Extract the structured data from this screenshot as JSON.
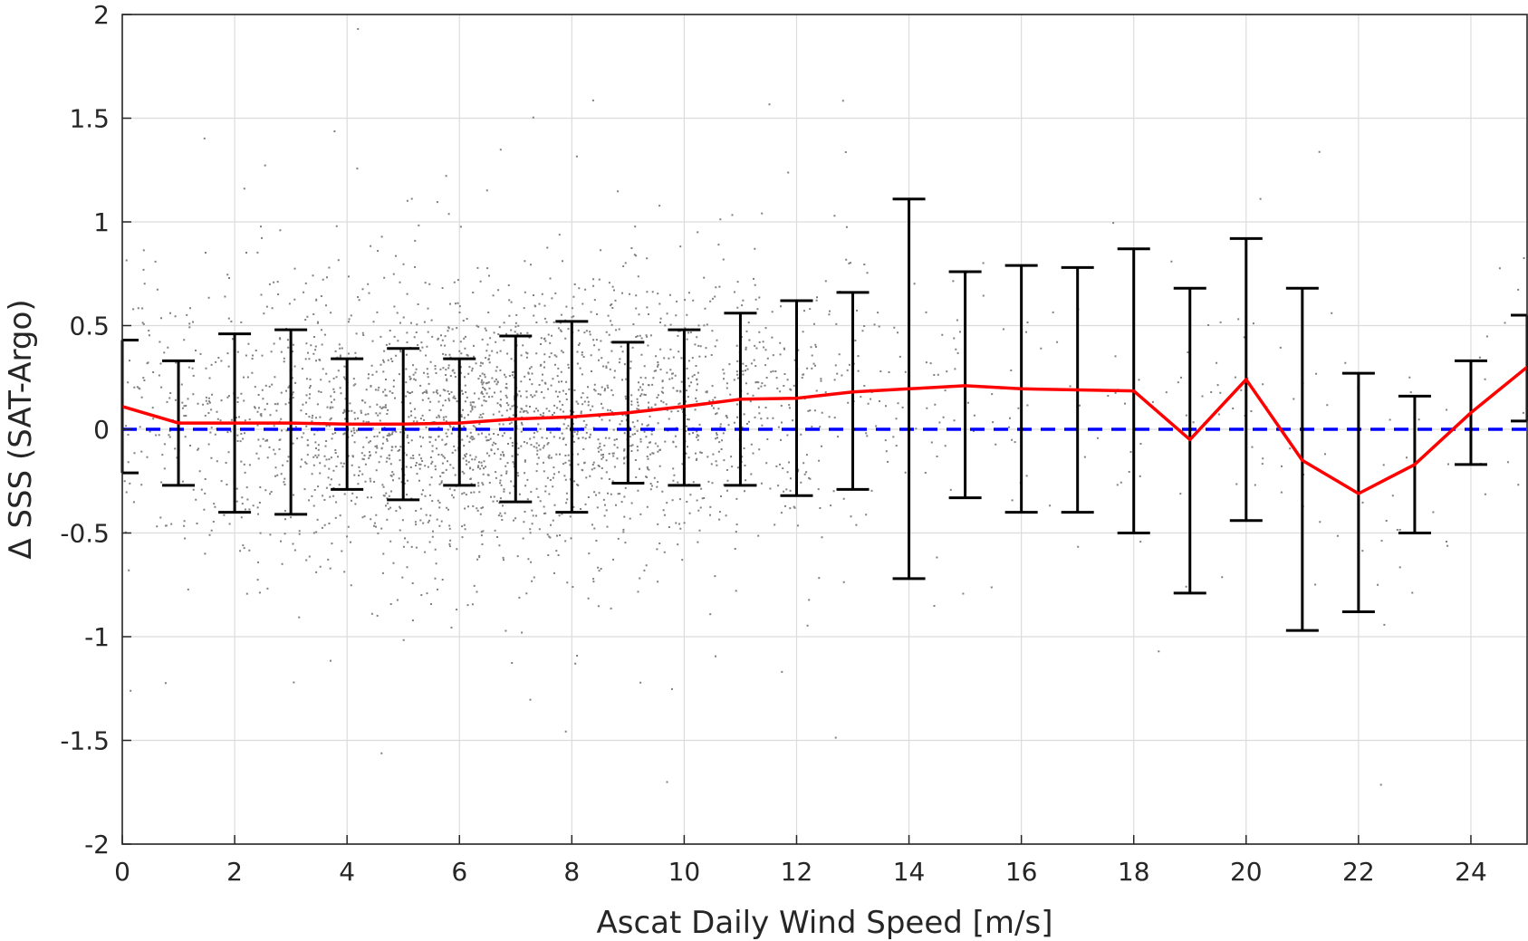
{
  "chart_data": {
    "type": "scatter",
    "title": "",
    "xlabel": "Ascat Daily Wind Speed [m/s]",
    "ylabel": "Δ SSS (SAT-Argo)",
    "xlim": [
      0,
      25
    ],
    "ylim": [
      -2,
      2
    ],
    "xticks": [
      0,
      2,
      4,
      6,
      8,
      10,
      12,
      14,
      16,
      18,
      20,
      22,
      24
    ],
    "yticks": [
      -2,
      -1.5,
      -1,
      -0.5,
      0,
      0.5,
      1,
      1.5,
      2
    ],
    "xtick_labels": [
      "0",
      "2",
      "4",
      "6",
      "8",
      "10",
      "12",
      "14",
      "16",
      "18",
      "20",
      "22",
      "24"
    ],
    "ytick_labels": [
      "-2",
      "-1.5",
      "-1",
      "-0.5",
      "0",
      "0.5",
      "1",
      "1.5",
      "2"
    ],
    "grid": true,
    "colors": {
      "scatter": "#808080",
      "mean_line": "#ff0000",
      "zero_line": "#0000ff",
      "error_bars": "#000000"
    },
    "series": [
      {
        "kind": "errorbar_mean",
        "x": [
          0,
          1,
          2,
          3,
          4,
          5,
          6,
          7,
          8,
          9,
          10,
          11,
          12,
          13,
          14,
          15,
          16,
          17,
          18,
          19,
          20,
          21,
          22,
          23,
          24,
          25
        ],
        "mean": [
          0.11,
          0.03,
          0.03,
          0.03,
          0.025,
          0.025,
          0.03,
          0.05,
          0.06,
          0.08,
          0.11,
          0.145,
          0.15,
          0.18,
          0.195,
          0.21,
          0.195,
          0.19,
          0.185,
          -0.05,
          0.24,
          -0.15,
          -0.31,
          -0.17,
          0.08,
          0.3
        ],
        "upper": [
          0.43,
          0.33,
          0.46,
          0.48,
          0.34,
          0.39,
          0.34,
          0.45,
          0.52,
          0.42,
          0.48,
          0.56,
          0.62,
          0.66,
          1.11,
          0.76,
          0.79,
          0.78,
          0.87,
          0.68,
          0.92,
          0.68,
          0.27,
          0.16,
          0.33,
          0.55
        ],
        "lower": [
          -0.21,
          -0.27,
          -0.4,
          -0.41,
          -0.29,
          -0.34,
          -0.27,
          -0.35,
          -0.4,
          -0.26,
          -0.27,
          -0.27,
          -0.32,
          -0.29,
          -0.72,
          -0.33,
          -0.4,
          -0.4,
          -0.5,
          -0.79,
          -0.44,
          -0.97,
          -0.88,
          -0.5,
          -0.17,
          0.04
        ]
      },
      {
        "kind": "reference_line",
        "style": "dashed",
        "y": 0
      },
      {
        "kind": "scatter_cloud",
        "description_values": {
          "center_mean_by_x": "follows mean series",
          "spread_sd_approx": 0.35,
          "x_range": [
            0,
            25
          ],
          "density_peak_x": 6
        }
      }
    ]
  }
}
